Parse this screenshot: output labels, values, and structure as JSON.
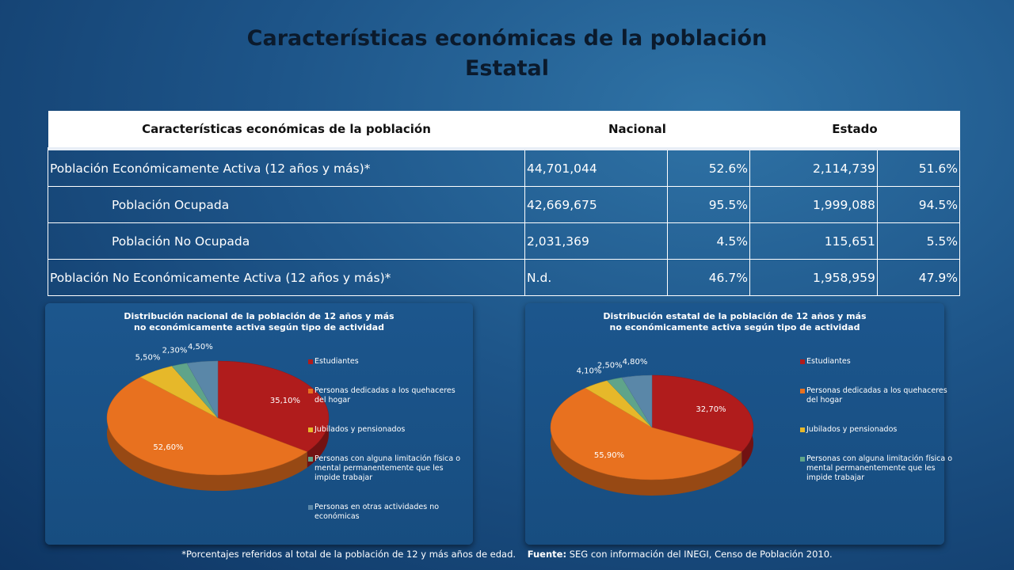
{
  "header": {
    "title": "Características económicas de la población",
    "subtitle": "Estatal"
  },
  "table": {
    "header": [
      "Características económicas de la población",
      "Nacional",
      "Estado"
    ],
    "rows": [
      [
        "Población Económicamente Activa (12 años y más)*",
        "44,701,044",
        "52.6%",
        "2,114,739",
        "51.6%"
      ],
      [
        "Población Ocupada",
        "42,669,675",
        "95.5%",
        "1,999,088",
        "94.5%"
      ],
      [
        "Población No Ocupada",
        "2,031,369",
        "4.5%",
        "115,651",
        "5.5%"
      ],
      [
        "Población No Económicamente Activa (12 años y más)*",
        "N.d.",
        "46.7%",
        "1,958,959",
        "47.9%"
      ]
    ]
  },
  "chart_data": [
    {
      "type": "pie",
      "title": "Distribución nacional de la población de 12 años y más\nno económicamente  activa según tipo de actividad",
      "categories": [
        "Estudiantes",
        "Personas dedicadas a los quehaceres del hogar",
        "Jubilados y pensionados",
        "Personas con alguna limitación física o mental permanentemente que les impide trabajar",
        "Personas en otras actividades no económicas"
      ],
      "values": [
        35.1,
        52.6,
        5.5,
        2.3,
        4.5
      ],
      "value_labels": [
        "35,10%",
        "52,60%",
        "5,50%",
        "2,30%",
        "4,50%"
      ],
      "colors": [
        "#b01c1c",
        "#e8711f",
        "#e6b82a",
        "#5fa48a",
        "#5a87a8"
      ]
    },
    {
      "type": "pie",
      "title": "Distribución estatal de la población de 12 años y más\nno económicamente  activa según tipo de actividad",
      "categories": [
        "Estudiantes",
        "Personas dedicadas a los quehaceres del hogar",
        "Jubilados y pensionados",
        "Personas con alguna limitación física o mental permanentemente que les impide trabajar",
        null
      ],
      "values": [
        32.7,
        55.9,
        4.1,
        2.5,
        4.8
      ],
      "value_labels": [
        "32,70%",
        "55,90%",
        "4,10%",
        "2,50%",
        "4,80%"
      ],
      "colors": [
        "#b01c1c",
        "#e8711f",
        "#e6b82a",
        "#5fa48a",
        "#5a87a8"
      ]
    }
  ],
  "footnote": {
    "note": "*Porcentajes referidos al total de la población de 12 y más años de edad.",
    "source_label": "Fuente:",
    "source": "SEG con información del  INEGI, Censo de Población 2010."
  }
}
